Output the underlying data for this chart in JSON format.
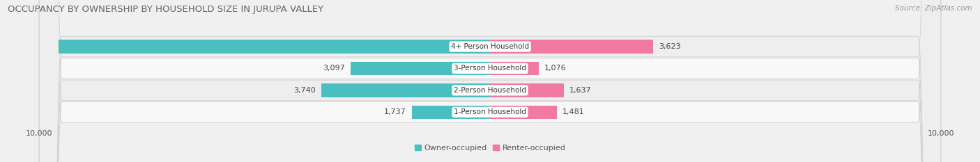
{
  "title": "OCCUPANCY BY OWNERSHIP BY HOUSEHOLD SIZE IN JURUPA VALLEY",
  "source": "Source: ZipAtlas.com",
  "categories": [
    "1-Person Household",
    "2-Person Household",
    "3-Person Household",
    "4+ Person Household"
  ],
  "owner_values": [
    1737,
    3740,
    3097,
    9566
  ],
  "renter_values": [
    1481,
    1637,
    1076,
    3623
  ],
  "owner_color": "#4bbfbf",
  "renter_color": "#f07aa0",
  "label_color": "#555555",
  "axis_max": 10000,
  "row_light": "#f2f2f2",
  "row_dark": "#e8e8e8",
  "bg_color": "#f0f0f0",
  "title_fontsize": 9.5,
  "source_fontsize": 7.5,
  "bar_label_fontsize": 8,
  "category_fontsize": 7.5,
  "legend_fontsize": 8,
  "tick_fontsize": 8
}
